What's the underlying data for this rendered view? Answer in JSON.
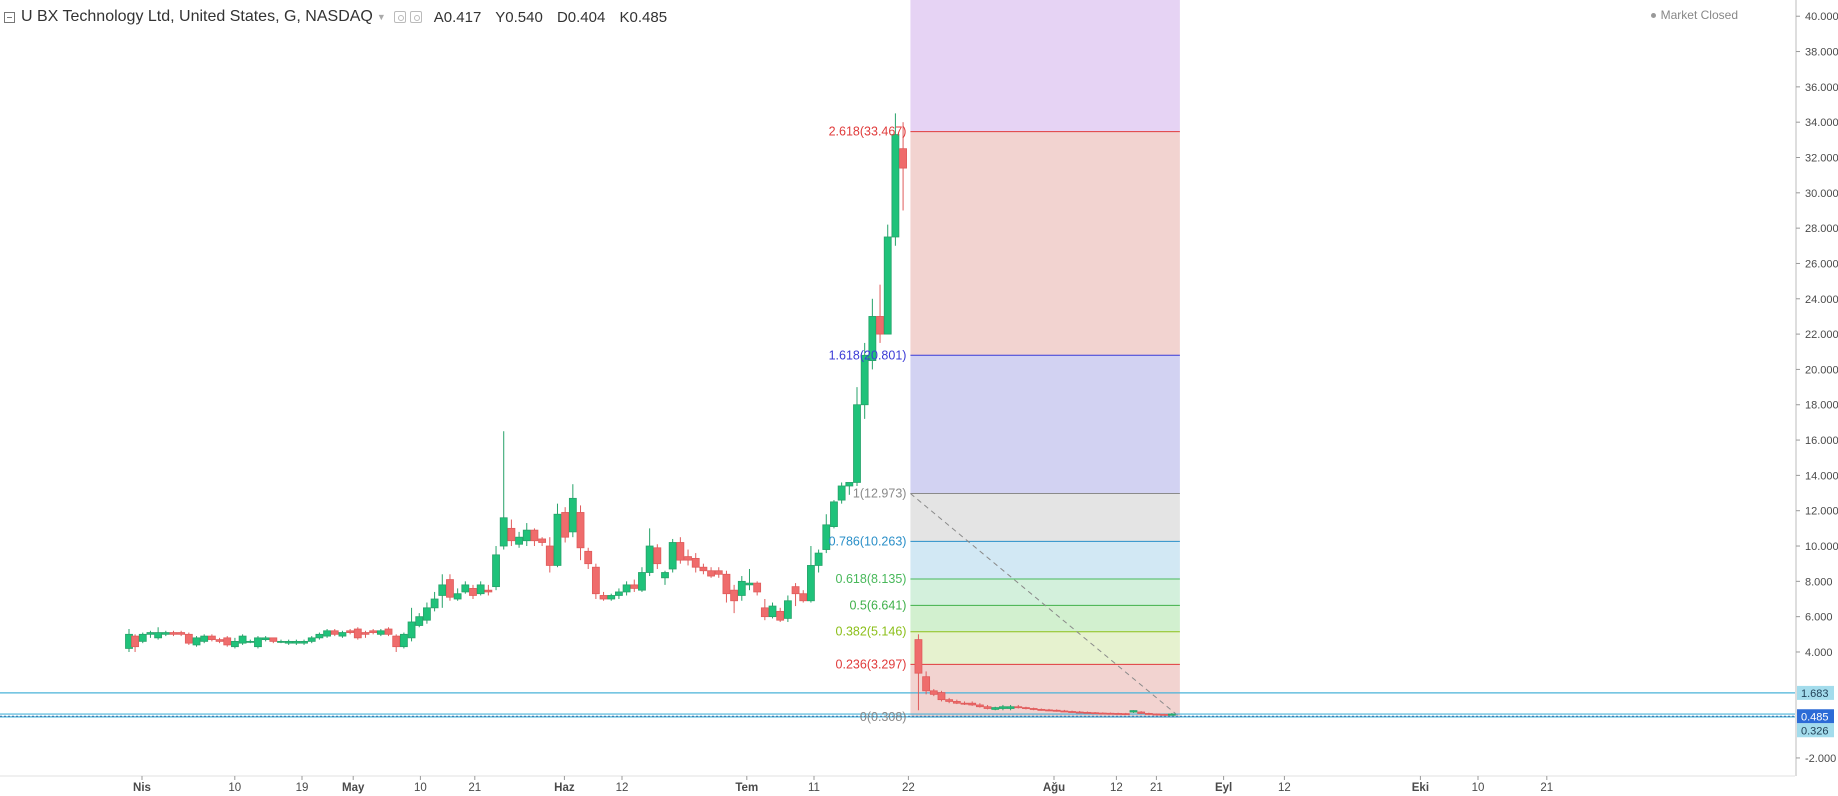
{
  "header": {
    "title": "U BX Technology Ltd, United States, G, NASDAQ",
    "ohlc": [
      "A0.417",
      "Y0.540",
      "D0.404",
      "K0.485"
    ],
    "status": "Market Closed"
  },
  "colors": {
    "up": "#26a269",
    "upFill": "#1fc27a",
    "down": "#e05b5b",
    "downFill": "#ef6c6c",
    "hline": "#4ab3d9"
  },
  "chart_data": {
    "type": "candlestick",
    "x_axis": {
      "labels": [
        "Nis",
        "10",
        "19",
        "May",
        "10",
        "21",
        "Haz",
        "12",
        "Tem",
        "11",
        "22",
        "Ağu",
        "12",
        "21",
        "Eyl",
        "12",
        "Eki",
        "10",
        "21"
      ]
    },
    "y_axis": {
      "range": [
        -3,
        41
      ],
      "tick_labels": [
        "40.000",
        "38.000",
        "36.000",
        "34.000",
        "32.000",
        "30.000",
        "28.000",
        "26.000",
        "24.000",
        "22.000",
        "20.000",
        "18.000",
        "16.000",
        "14.000",
        "12.000",
        "10.000",
        "8.000",
        "6.000",
        "4.000",
        "-2.000"
      ],
      "ticks": [
        40,
        38,
        36,
        34,
        32,
        30,
        28,
        26,
        24,
        22,
        20,
        18,
        16,
        14,
        12,
        10,
        8,
        6,
        4,
        -2
      ]
    },
    "candles": [
      {
        "t": 0.0,
        "o": 4.2,
        "h": 5.3,
        "l": 4.0,
        "c": 5.0
      },
      {
        "t": 0.38,
        "o": 4.9,
        "h": 5.0,
        "l": 4.0,
        "c": 4.3
      },
      {
        "t": 0.86,
        "o": 4.6,
        "h": 5.1,
        "l": 4.5,
        "c": 5.0
      },
      {
        "t": 1.34,
        "o": 5.0,
        "h": 5.2,
        "l": 4.8,
        "c": 5.1
      },
      {
        "t": 1.82,
        "o": 4.8,
        "h": 5.4,
        "l": 4.7,
        "c": 5.1
      },
      {
        "t": 2.3,
        "o": 5.0,
        "h": 5.2,
        "l": 4.9,
        "c": 5.1
      },
      {
        "t": 2.78,
        "o": 5.1,
        "h": 5.2,
        "l": 4.9,
        "c": 5.0
      },
      {
        "t": 3.26,
        "o": 5.1,
        "h": 5.2,
        "l": 4.9,
        "c": 5.0
      },
      {
        "t": 3.74,
        "o": 5.0,
        "h": 5.1,
        "l": 4.4,
        "c": 4.5
      },
      {
        "t": 4.22,
        "o": 4.4,
        "h": 4.9,
        "l": 4.3,
        "c": 4.8
      },
      {
        "t": 4.7,
        "o": 4.6,
        "h": 5.0,
        "l": 4.5,
        "c": 4.9
      },
      {
        "t": 5.18,
        "o": 4.9,
        "h": 5.0,
        "l": 4.6,
        "c": 4.7
      },
      {
        "t": 5.66,
        "o": 4.7,
        "h": 4.8,
        "l": 4.5,
        "c": 4.6
      },
      {
        "t": 6.14,
        "o": 4.8,
        "h": 4.9,
        "l": 4.3,
        "c": 4.4
      },
      {
        "t": 6.62,
        "o": 4.3,
        "h": 4.8,
        "l": 4.2,
        "c": 4.6
      },
      {
        "t": 7.1,
        "o": 4.5,
        "h": 5.0,
        "l": 4.4,
        "c": 4.9
      },
      {
        "t": 7.58,
        "o": 4.6,
        "h": 4.7,
        "l": 4.5,
        "c": 4.6
      },
      {
        "t": 8.06,
        "o": 4.3,
        "h": 4.9,
        "l": 4.2,
        "c": 4.8
      },
      {
        "t": 8.54,
        "o": 4.7,
        "h": 4.9,
        "l": 4.6,
        "c": 4.8
      },
      {
        "t": 9.02,
        "o": 4.8,
        "h": 4.8,
        "l": 4.5,
        "c": 4.6
      },
      {
        "t": 9.5,
        "o": 4.6,
        "h": 4.7,
        "l": 4.5,
        "c": 4.6
      },
      {
        "t": 9.98,
        "o": 4.5,
        "h": 4.7,
        "l": 4.4,
        "c": 4.6
      },
      {
        "t": 10.46,
        "o": 4.5,
        "h": 4.7,
        "l": 4.4,
        "c": 4.6
      },
      {
        "t": 10.94,
        "o": 4.5,
        "h": 4.7,
        "l": 4.4,
        "c": 4.6
      },
      {
        "t": 11.42,
        "o": 4.6,
        "h": 4.9,
        "l": 4.5,
        "c": 4.8
      },
      {
        "t": 11.9,
        "o": 4.8,
        "h": 5.1,
        "l": 4.7,
        "c": 5.0
      },
      {
        "t": 12.38,
        "o": 4.9,
        "h": 5.3,
        "l": 4.8,
        "c": 5.2
      },
      {
        "t": 12.86,
        "o": 5.2,
        "h": 5.3,
        "l": 4.9,
        "c": 5.0
      },
      {
        "t": 13.34,
        "o": 4.9,
        "h": 5.2,
        "l": 4.8,
        "c": 5.1
      },
      {
        "t": 13.82,
        "o": 5.2,
        "h": 5.3,
        "l": 5.0,
        "c": 5.1
      },
      {
        "t": 14.3,
        "o": 5.3,
        "h": 5.4,
        "l": 4.7,
        "c": 4.8
      },
      {
        "t": 14.78,
        "o": 5.1,
        "h": 5.2,
        "l": 4.8,
        "c": 5.0
      },
      {
        "t": 15.26,
        "o": 5.2,
        "h": 5.3,
        "l": 5.0,
        "c": 5.1
      },
      {
        "t": 15.74,
        "o": 5.0,
        "h": 5.3,
        "l": 4.9,
        "c": 5.2
      },
      {
        "t": 16.22,
        "o": 5.3,
        "h": 5.4,
        "l": 4.9,
        "c": 5.0
      },
      {
        "t": 16.7,
        "o": 4.9,
        "h": 5.0,
        "l": 4.0,
        "c": 4.3
      },
      {
        "t": 17.18,
        "o": 4.3,
        "h": 5.1,
        "l": 4.2,
        "c": 5.0
      },
      {
        "t": 17.66,
        "o": 4.8,
        "h": 6.5,
        "l": 4.6,
        "c": 5.7
      },
      {
        "t": 18.14,
        "o": 5.5,
        "h": 6.2,
        "l": 5.4,
        "c": 6.0
      },
      {
        "t": 18.62,
        "o": 5.8,
        "h": 6.8,
        "l": 5.6,
        "c": 6.5
      },
      {
        "t": 19.1,
        "o": 6.5,
        "h": 7.4,
        "l": 6.3,
        "c": 7.0
      },
      {
        "t": 19.58,
        "o": 7.2,
        "h": 8.4,
        "l": 6.5,
        "c": 7.8
      },
      {
        "t": 20.06,
        "o": 8.1,
        "h": 8.4,
        "l": 6.9,
        "c": 7.1
      },
      {
        "t": 20.54,
        "o": 7.0,
        "h": 7.6,
        "l": 6.9,
        "c": 7.3
      },
      {
        "t": 21.02,
        "o": 7.4,
        "h": 8.0,
        "l": 7.3,
        "c": 7.8
      },
      {
        "t": 21.5,
        "o": 7.6,
        "h": 7.8,
        "l": 7.0,
        "c": 7.2
      },
      {
        "t": 21.98,
        "o": 7.3,
        "h": 8.0,
        "l": 7.2,
        "c": 7.8
      },
      {
        "t": 22.46,
        "o": 7.5,
        "h": 7.8,
        "l": 7.2,
        "c": 7.4
      },
      {
        "t": 22.94,
        "o": 7.7,
        "h": 10.0,
        "l": 7.5,
        "c": 9.5
      },
      {
        "t": 23.42,
        "o": 10.0,
        "h": 16.5,
        "l": 9.8,
        "c": 11.6
      },
      {
        "t": 23.9,
        "o": 11.0,
        "h": 11.5,
        "l": 10.0,
        "c": 10.3
      },
      {
        "t": 24.38,
        "o": 10.1,
        "h": 10.8,
        "l": 9.9,
        "c": 10.5
      },
      {
        "t": 24.86,
        "o": 10.3,
        "h": 11.3,
        "l": 10.0,
        "c": 10.9
      },
      {
        "t": 25.34,
        "o": 10.9,
        "h": 11.0,
        "l": 10.0,
        "c": 10.3
      },
      {
        "t": 25.82,
        "o": 10.4,
        "h": 10.5,
        "l": 10.0,
        "c": 10.2
      },
      {
        "t": 26.3,
        "o": 10.0,
        "h": 10.5,
        "l": 8.5,
        "c": 8.9
      },
      {
        "t": 26.78,
        "o": 8.9,
        "h": 12.4,
        "l": 8.8,
        "c": 11.8
      },
      {
        "t": 27.26,
        "o": 11.9,
        "h": 12.2,
        "l": 10.2,
        "c": 10.5
      },
      {
        "t": 27.74,
        "o": 10.8,
        "h": 13.5,
        "l": 10.5,
        "c": 12.7
      },
      {
        "t": 28.22,
        "o": 11.9,
        "h": 12.3,
        "l": 9.2,
        "c": 9.9
      },
      {
        "t": 28.7,
        "o": 9.7,
        "h": 9.9,
        "l": 8.7,
        "c": 9.0
      },
      {
        "t": 29.18,
        "o": 8.8,
        "h": 9.0,
        "l": 7.0,
        "c": 7.3
      },
      {
        "t": 29.66,
        "o": 7.2,
        "h": 7.4,
        "l": 6.9,
        "c": 7.0
      },
      {
        "t": 30.14,
        "o": 7.0,
        "h": 7.3,
        "l": 6.9,
        "c": 7.2
      },
      {
        "t": 30.62,
        "o": 7.2,
        "h": 7.6,
        "l": 7.0,
        "c": 7.4
      },
      {
        "t": 31.1,
        "o": 7.4,
        "h": 8.0,
        "l": 7.2,
        "c": 7.8
      },
      {
        "t": 31.58,
        "o": 7.8,
        "h": 8.1,
        "l": 7.4,
        "c": 7.6
      },
      {
        "t": 32.06,
        "o": 7.5,
        "h": 8.8,
        "l": 7.4,
        "c": 8.5
      },
      {
        "t": 32.54,
        "o": 8.5,
        "h": 11.0,
        "l": 8.3,
        "c": 10.0
      },
      {
        "t": 33.02,
        "o": 9.9,
        "h": 10.1,
        "l": 8.7,
        "c": 9.0
      },
      {
        "t": 33.5,
        "o": 8.2,
        "h": 8.6,
        "l": 7.8,
        "c": 8.5
      },
      {
        "t": 33.98,
        "o": 8.7,
        "h": 10.4,
        "l": 8.5,
        "c": 10.2
      },
      {
        "t": 34.46,
        "o": 10.2,
        "h": 10.5,
        "l": 9.0,
        "c": 9.2
      },
      {
        "t": 34.94,
        "o": 9.4,
        "h": 9.8,
        "l": 8.9,
        "c": 9.2
      },
      {
        "t": 35.42,
        "o": 9.3,
        "h": 9.6,
        "l": 8.5,
        "c": 8.8
      },
      {
        "t": 35.9,
        "o": 8.8,
        "h": 9.0,
        "l": 8.4,
        "c": 8.6
      },
      {
        "t": 36.38,
        "o": 8.6,
        "h": 8.8,
        "l": 8.2,
        "c": 8.3
      },
      {
        "t": 36.86,
        "o": 8.6,
        "h": 8.8,
        "l": 8.2,
        "c": 8.4
      },
      {
        "t": 37.34,
        "o": 8.4,
        "h": 8.6,
        "l": 6.8,
        "c": 7.3
      },
      {
        "t": 37.82,
        "o": 7.5,
        "h": 7.8,
        "l": 6.2,
        "c": 6.9
      },
      {
        "t": 38.3,
        "o": 7.2,
        "h": 8.3,
        "l": 6.9,
        "c": 8.0
      },
      {
        "t": 38.78,
        "o": 7.8,
        "h": 8.7,
        "l": 7.5,
        "c": 7.9
      },
      {
        "t": 39.26,
        "o": 7.9,
        "h": 8.0,
        "l": 7.2,
        "c": 7.4
      },
      {
        "t": 39.74,
        "o": 6.5,
        "h": 7.0,
        "l": 5.8,
        "c": 6.0
      },
      {
        "t": 40.22,
        "o": 6.0,
        "h": 6.8,
        "l": 5.9,
        "c": 6.6
      },
      {
        "t": 40.7,
        "o": 6.3,
        "h": 6.5,
        "l": 5.7,
        "c": 5.8
      },
      {
        "t": 41.18,
        "o": 5.9,
        "h": 7.2,
        "l": 5.7,
        "c": 6.9
      },
      {
        "t": 41.66,
        "o": 7.7,
        "h": 7.9,
        "l": 6.6,
        "c": 7.3
      },
      {
        "t": 42.14,
        "o": 7.3,
        "h": 7.5,
        "l": 6.8,
        "c": 6.9
      },
      {
        "t": 42.62,
        "o": 6.9,
        "h": 10.0,
        "l": 6.8,
        "c": 8.9
      },
      {
        "t": 43.1,
        "o": 8.9,
        "h": 9.8,
        "l": 8.5,
        "c": 9.6
      },
      {
        "t": 43.58,
        "o": 9.8,
        "h": 11.8,
        "l": 9.6,
        "c": 11.2
      },
      {
        "t": 44.06,
        "o": 11.1,
        "h": 12.6,
        "l": 11.0,
        "c": 12.5
      },
      {
        "t": 44.54,
        "o": 12.6,
        "h": 13.6,
        "l": 12.4,
        "c": 13.4
      },
      {
        "t": 45.02,
        "o": 13.4,
        "h": 13.6,
        "l": 12.9,
        "c": 13.6
      },
      {
        "t": 45.5,
        "o": 13.6,
        "h": 19.0,
        "l": 13.4,
        "c": 18.0
      },
      {
        "t": 45.98,
        "o": 18.0,
        "h": 21.5,
        "l": 17.2,
        "c": 20.8
      },
      {
        "t": 46.46,
        "o": 20.5,
        "h": 24.0,
        "l": 20.0,
        "c": 23.0
      },
      {
        "t": 46.94,
        "o": 23.0,
        "h": 24.8,
        "l": 21.5,
        "c": 22.0
      },
      {
        "t": 47.42,
        "o": 22.0,
        "h": 28.2,
        "l": 22.0,
        "c": 27.5
      },
      {
        "t": 47.9,
        "o": 27.5,
        "h": 34.5,
        "l": 27.0,
        "c": 33.3
      },
      {
        "t": 48.38,
        "o": 32.5,
        "h": 34.0,
        "l": 29.0,
        "c": 31.4
      },
      {
        "t": 49.34,
        "o": 4.7,
        "h": 5.0,
        "l": 0.7,
        "c": 2.8
      },
      {
        "t": 49.82,
        "o": 2.6,
        "h": 2.9,
        "l": 1.6,
        "c": 1.8
      },
      {
        "t": 50.3,
        "o": 1.8,
        "h": 1.9,
        "l": 1.5,
        "c": 1.6
      },
      {
        "t": 50.78,
        "o": 1.7,
        "h": 1.8,
        "l": 1.2,
        "c": 1.3
      },
      {
        "t": 51.26,
        "o": 1.3,
        "h": 1.4,
        "l": 1.1,
        "c": 1.2
      },
      {
        "t": 51.74,
        "o": 1.2,
        "h": 1.3,
        "l": 1.05,
        "c": 1.1
      },
      {
        "t": 52.22,
        "o": 1.1,
        "h": 1.2,
        "l": 1.0,
        "c": 1.05
      },
      {
        "t": 52.7,
        "o": 1.1,
        "h": 1.2,
        "l": 0.95,
        "c": 1.0
      },
      {
        "t": 53.18,
        "o": 1.0,
        "h": 1.1,
        "l": 0.85,
        "c": 0.9
      },
      {
        "t": 53.66,
        "o": 0.9,
        "h": 1.0,
        "l": 0.75,
        "c": 0.8
      },
      {
        "t": 54.14,
        "o": 0.75,
        "h": 0.9,
        "l": 0.7,
        "c": 0.85
      },
      {
        "t": 54.62,
        "o": 0.8,
        "h": 1.0,
        "l": 0.7,
        "c": 0.9
      },
      {
        "t": 55.1,
        "o": 0.8,
        "h": 1.0,
        "l": 0.7,
        "c": 0.9
      },
      {
        "t": 55.58,
        "o": 0.9,
        "h": 1.0,
        "l": 0.8,
        "c": 0.85
      },
      {
        "t": 56.06,
        "o": 0.85,
        "h": 0.9,
        "l": 0.75,
        "c": 0.8
      },
      {
        "t": 56.54,
        "o": 0.8,
        "h": 0.85,
        "l": 0.7,
        "c": 0.75
      },
      {
        "t": 57.02,
        "o": 0.75,
        "h": 0.8,
        "l": 0.68,
        "c": 0.72
      },
      {
        "t": 57.5,
        "o": 0.72,
        "h": 0.78,
        "l": 0.65,
        "c": 0.7
      },
      {
        "t": 57.98,
        "o": 0.7,
        "h": 0.75,
        "l": 0.62,
        "c": 0.66
      },
      {
        "t": 58.46,
        "o": 0.66,
        "h": 0.72,
        "l": 0.6,
        "c": 0.63
      },
      {
        "t": 58.94,
        "o": 0.63,
        "h": 0.68,
        "l": 0.58,
        "c": 0.6
      },
      {
        "t": 59.42,
        "o": 0.6,
        "h": 0.66,
        "l": 0.55,
        "c": 0.58
      },
      {
        "t": 59.9,
        "o": 0.58,
        "h": 0.63,
        "l": 0.53,
        "c": 0.56
      },
      {
        "t": 60.38,
        "o": 0.56,
        "h": 0.6,
        "l": 0.5,
        "c": 0.54
      },
      {
        "t": 60.86,
        "o": 0.54,
        "h": 0.58,
        "l": 0.5,
        "c": 0.53
      },
      {
        "t": 61.34,
        "o": 0.53,
        "h": 0.57,
        "l": 0.48,
        "c": 0.52
      },
      {
        "t": 61.82,
        "o": 0.52,
        "h": 0.56,
        "l": 0.48,
        "c": 0.51
      },
      {
        "t": 62.3,
        "o": 0.51,
        "h": 0.55,
        "l": 0.47,
        "c": 0.5
      },
      {
        "t": 62.78,
        "o": 0.6,
        "h": 0.7,
        "l": 0.55,
        "c": 0.68
      },
      {
        "t": 63.26,
        "o": 0.6,
        "h": 0.65,
        "l": 0.5,
        "c": 0.52
      },
      {
        "t": 63.74,
        "o": 0.52,
        "h": 0.56,
        "l": 0.46,
        "c": 0.49
      },
      {
        "t": 64.22,
        "o": 0.49,
        "h": 0.52,
        "l": 0.44,
        "c": 0.47
      },
      {
        "t": 64.7,
        "o": 0.47,
        "h": 0.5,
        "l": 0.42,
        "c": 0.45
      },
      {
        "t": 65.18,
        "o": 0.417,
        "h": 0.54,
        "l": 0.404,
        "c": 0.485
      }
    ],
    "fibonacci": {
      "levels": [
        {
          "label": "2.618(33.467)",
          "value": 33.467,
          "color": "#e03b3b",
          "fill": "#f2d3d0"
        },
        {
          "label": "1.618(20.801)",
          "value": 20.801,
          "color": "#3b3bd6",
          "fill": "#d2d2f2"
        },
        {
          "label": "1(12.973)",
          "value": 12.973,
          "color": "#8a8a8a",
          "fill": "#e4e4e4"
        },
        {
          "label": "0.786(10.263)",
          "value": 10.263,
          "color": "#2a8fc8",
          "fill": "#d2e8f4"
        },
        {
          "label": "0.618(8.135)",
          "value": 8.135,
          "color": "#48b85a",
          "fill": "#d3f0dc"
        },
        {
          "label": "0.5(6.641)",
          "value": 6.641,
          "color": "#3fb04a",
          "fill": "#d2f0cf"
        },
        {
          "label": "0.382(5.146)",
          "value": 5.146,
          "color": "#8cbf1a",
          "fill": "#e6f2cf"
        },
        {
          "label": "0.236(3.297)",
          "value": 3.297,
          "color": "#e03b3b",
          "fill": "#f2d3d0"
        },
        {
          "label": "0(0.308)",
          "value": 0.308,
          "color": "#8a8a8a",
          "fill": ""
        }
      ],
      "top_fill": "#e6d3f4",
      "start_t": 49.34,
      "end_t": 65.18
    },
    "horizontal_lines": [
      {
        "value": 1.683,
        "label": "1.683"
      },
      {
        "value": 0.485,
        "label": "0.485"
      },
      {
        "value": 0.326,
        "label": "0.326"
      }
    ]
  }
}
